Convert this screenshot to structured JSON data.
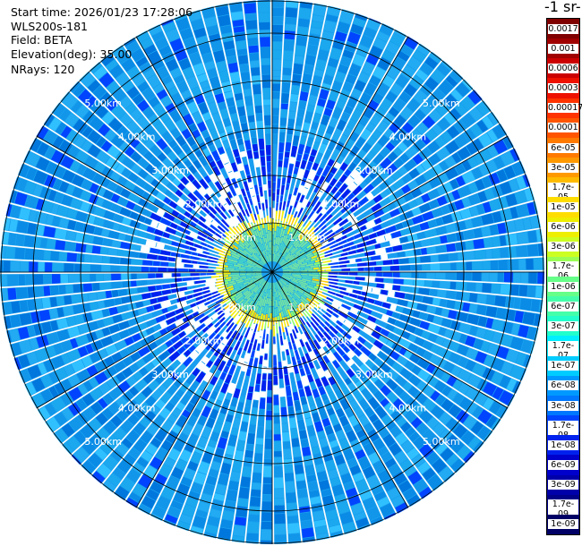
{
  "info": {
    "start_time": "Start time: 2026/01/23 17:28:06",
    "instrument": "WLS200s-181",
    "field": "Field: BETA",
    "elevation": "Elevation(deg): 35.00",
    "nrays": "NRays: 120"
  },
  "colorbar": {
    "title": "-1 sr-",
    "labels": [
      "0.0017",
      "0.001",
      "0.0006",
      "0.0003",
      "0.00017",
      "0.0001",
      "6e-05",
      "3e-05",
      "1.7e-05",
      "1e-05",
      "6e-06",
      "3e-06",
      "1.7e-06",
      "1e-06",
      "6e-07",
      "3e-07",
      "1.7e-07",
      "1e-07",
      "6e-08",
      "3e-08",
      "1.7e-08",
      "1e-08",
      "6e-09",
      "3e-09",
      "1.7e-09",
      "1e-09"
    ],
    "colors": [
      "#800000",
      "#a00000",
      "#cc0000",
      "#ee1100",
      "#ff3300",
      "#ff5500",
      "#ff7a00",
      "#ff9900",
      "#ffbb00",
      "#ffdd00",
      "#eeee00",
      "#ccff22",
      "#99ff55",
      "#66ff88",
      "#44ffaa",
      "#22ffcc",
      "#00eeff",
      "#00ccff",
      "#0099ff",
      "#0077ff",
      "#0044ff",
      "#0022ee",
      "#0000cc",
      "#0000aa",
      "#000088",
      "#000066"
    ]
  },
  "ring_labels": {
    "r1": "1.00km",
    "r2": "2.00km",
    "r3": "3.00km",
    "r4": "4.00km",
    "r5": "5.00km"
  }
}
